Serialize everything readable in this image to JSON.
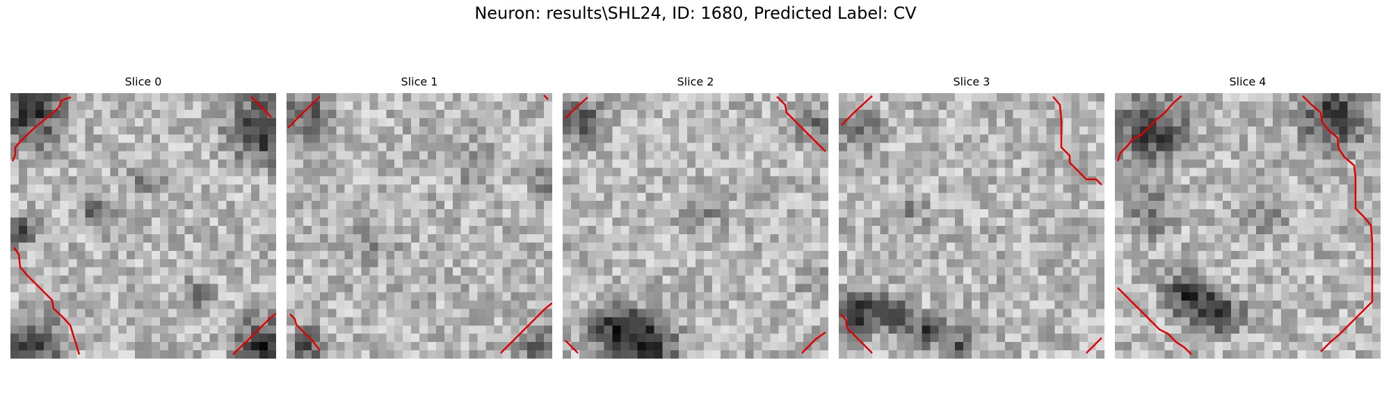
{
  "figure": {
    "title": "Neuron: results\\SHL24, ID: 1680, Predicted Label: CV"
  },
  "colors": {
    "contour": "#ff0000",
    "colormap": "grayscale"
  },
  "slices": [
    {
      "title": "Slice 0"
    },
    {
      "title": "Slice 1"
    },
    {
      "title": "Slice 2"
    },
    {
      "title": "Slice 3"
    },
    {
      "title": "Slice 4"
    }
  ]
}
